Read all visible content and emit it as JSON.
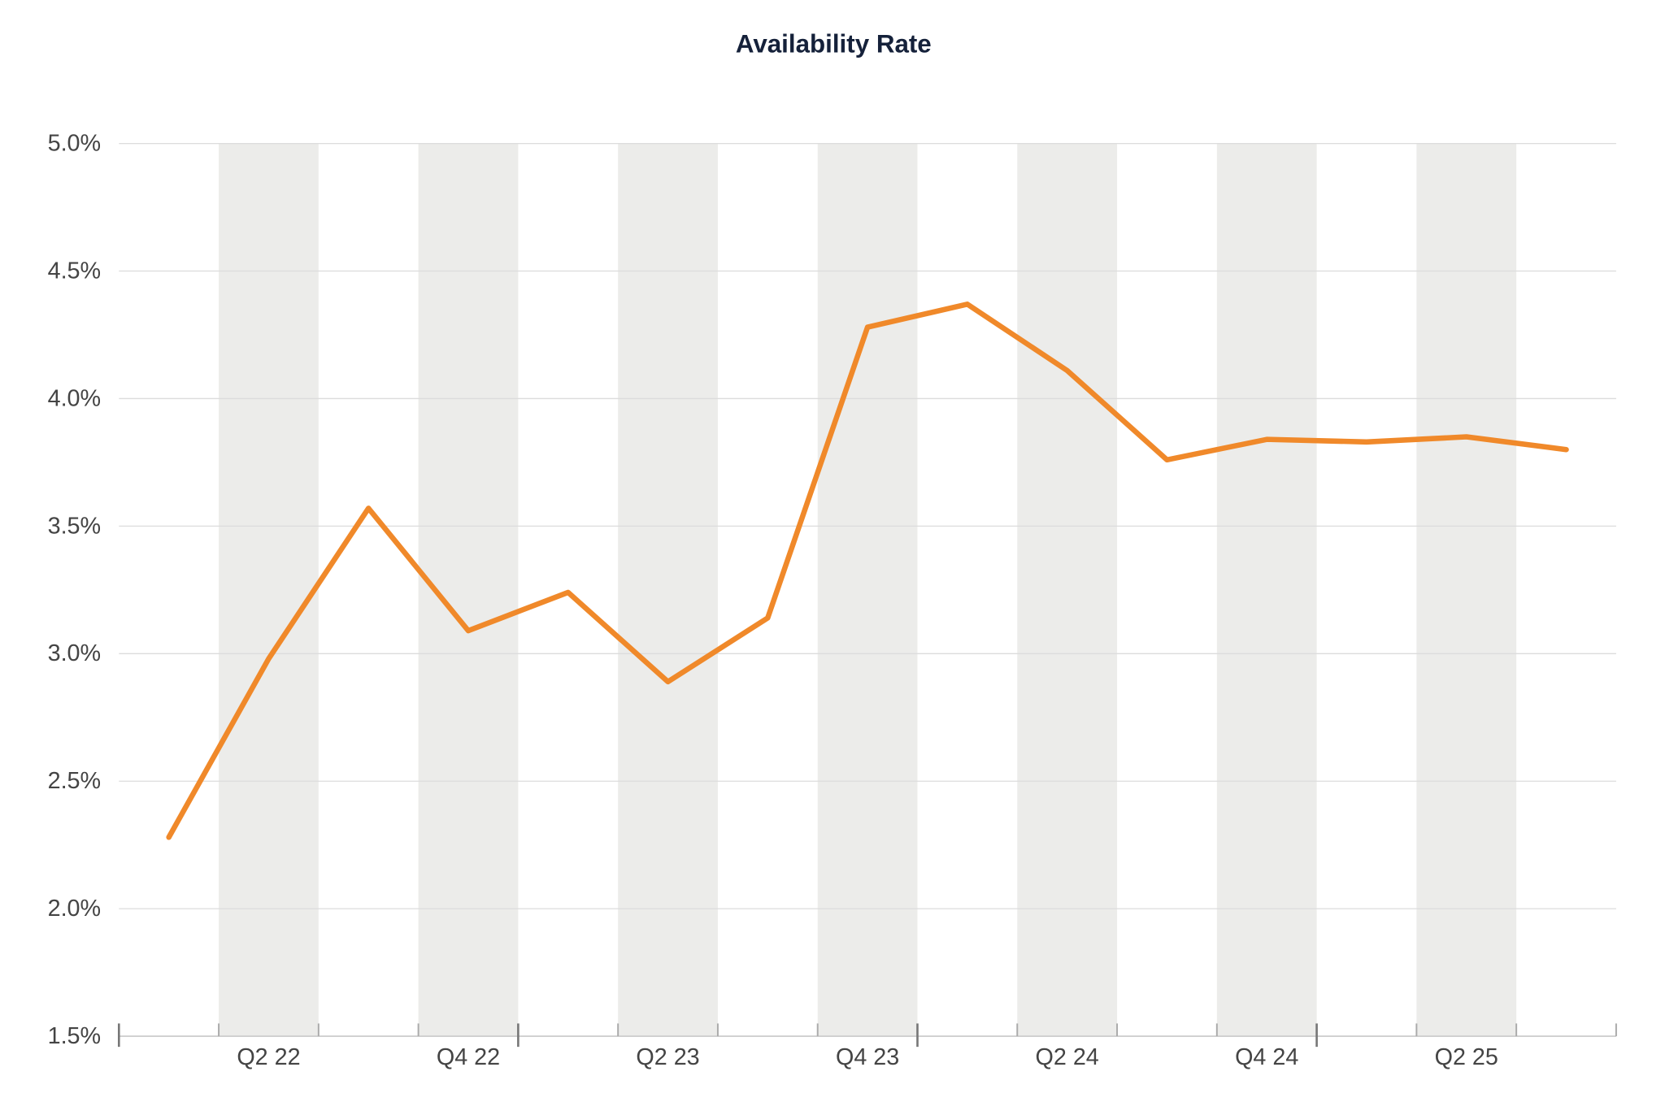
{
  "chart_data": {
    "type": "line",
    "title": "Availability Rate",
    "categories": [
      null,
      "Q2 22",
      null,
      "Q4 22",
      null,
      "Q2 23",
      null,
      "Q4 23",
      null,
      "Q2 24",
      null,
      "Q4 24",
      null,
      "Q2 25",
      null
    ],
    "values": [
      2.28,
      2.98,
      3.57,
      3.09,
      3.24,
      2.89,
      3.14,
      4.28,
      4.37,
      4.11,
      3.76,
      3.84,
      3.83,
      3.85,
      3.8
    ],
    "color": "#f0892a",
    "ylim": [
      1.5,
      5.0
    ],
    "yticks": [
      {
        "value": 1.5,
        "label": "1.5%"
      },
      {
        "value": 2.0,
        "label": "2.0%"
      },
      {
        "value": 2.5,
        "label": "2.5%"
      },
      {
        "value": 3.0,
        "label": "3.0%"
      },
      {
        "value": 3.5,
        "label": "3.5%"
      },
      {
        "value": 4.0,
        "label": "4.0%"
      },
      {
        "value": 4.5,
        "label": "4.5%"
      },
      {
        "value": 5.0,
        "label": "5.0%"
      }
    ],
    "grid": true
  }
}
